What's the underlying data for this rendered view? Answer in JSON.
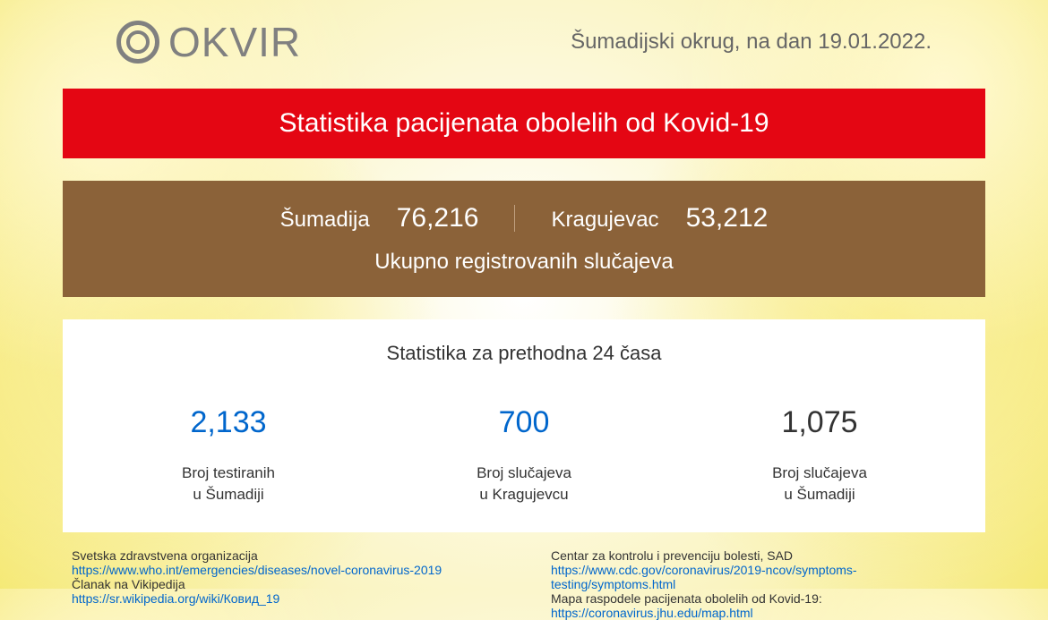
{
  "header": {
    "logo_text": "OKVIR",
    "date_text": "Šumadijski okrug, na dan 19.01.2022."
  },
  "red_banner": {
    "title": "Statistika pacijenata obolelih od Kovid-19"
  },
  "brown_panel": {
    "region1_label": "Šumadija",
    "region1_value": "76,216",
    "region2_label": "Kragujevac",
    "region2_value": "53,212",
    "subtitle": "Ukupno registrovanih slučajeva"
  },
  "white_panel": {
    "title": "Statistika za prethodna 24 časa",
    "stats": [
      {
        "value": "2,133",
        "label_line1": "Broj testiranih",
        "label_line2": "u Šumadiji",
        "color": "blue"
      },
      {
        "value": "700",
        "label_line1": "Broj slučajeva",
        "label_line2": "u Kragujevcu",
        "color": "blue"
      },
      {
        "value": "1,075",
        "label_line1": "Broj slučajeva",
        "label_line2": "u Šumadiji",
        "color": "black"
      }
    ]
  },
  "footer": {
    "left": {
      "label1": "Svetska zdravstvena organizacija",
      "link1": "https://www.who.int/emergencies/diseases/novel-coronavirus-2019",
      "label2": "Članak na Vikipedija",
      "link2": "https://sr.wikipedia.org/wiki/Ковид_19"
    },
    "right": {
      "label1": "Centar za kontrolu i prevenciju bolesti, SAD",
      "link1": "https://www.cdc.gov/coronavirus/2019-ncov/symptoms-testing/symptoms.html",
      "label2": "Mapa raspodele pacijenata obolelih od Kovid-19:",
      "link2": "https://coronavirus.jhu.edu/map.html"
    }
  },
  "colors": {
    "red_banner": "#e40613",
    "brown_panel": "#8b6239",
    "blue_text": "#0066cc",
    "logo_gray": "#808080"
  }
}
